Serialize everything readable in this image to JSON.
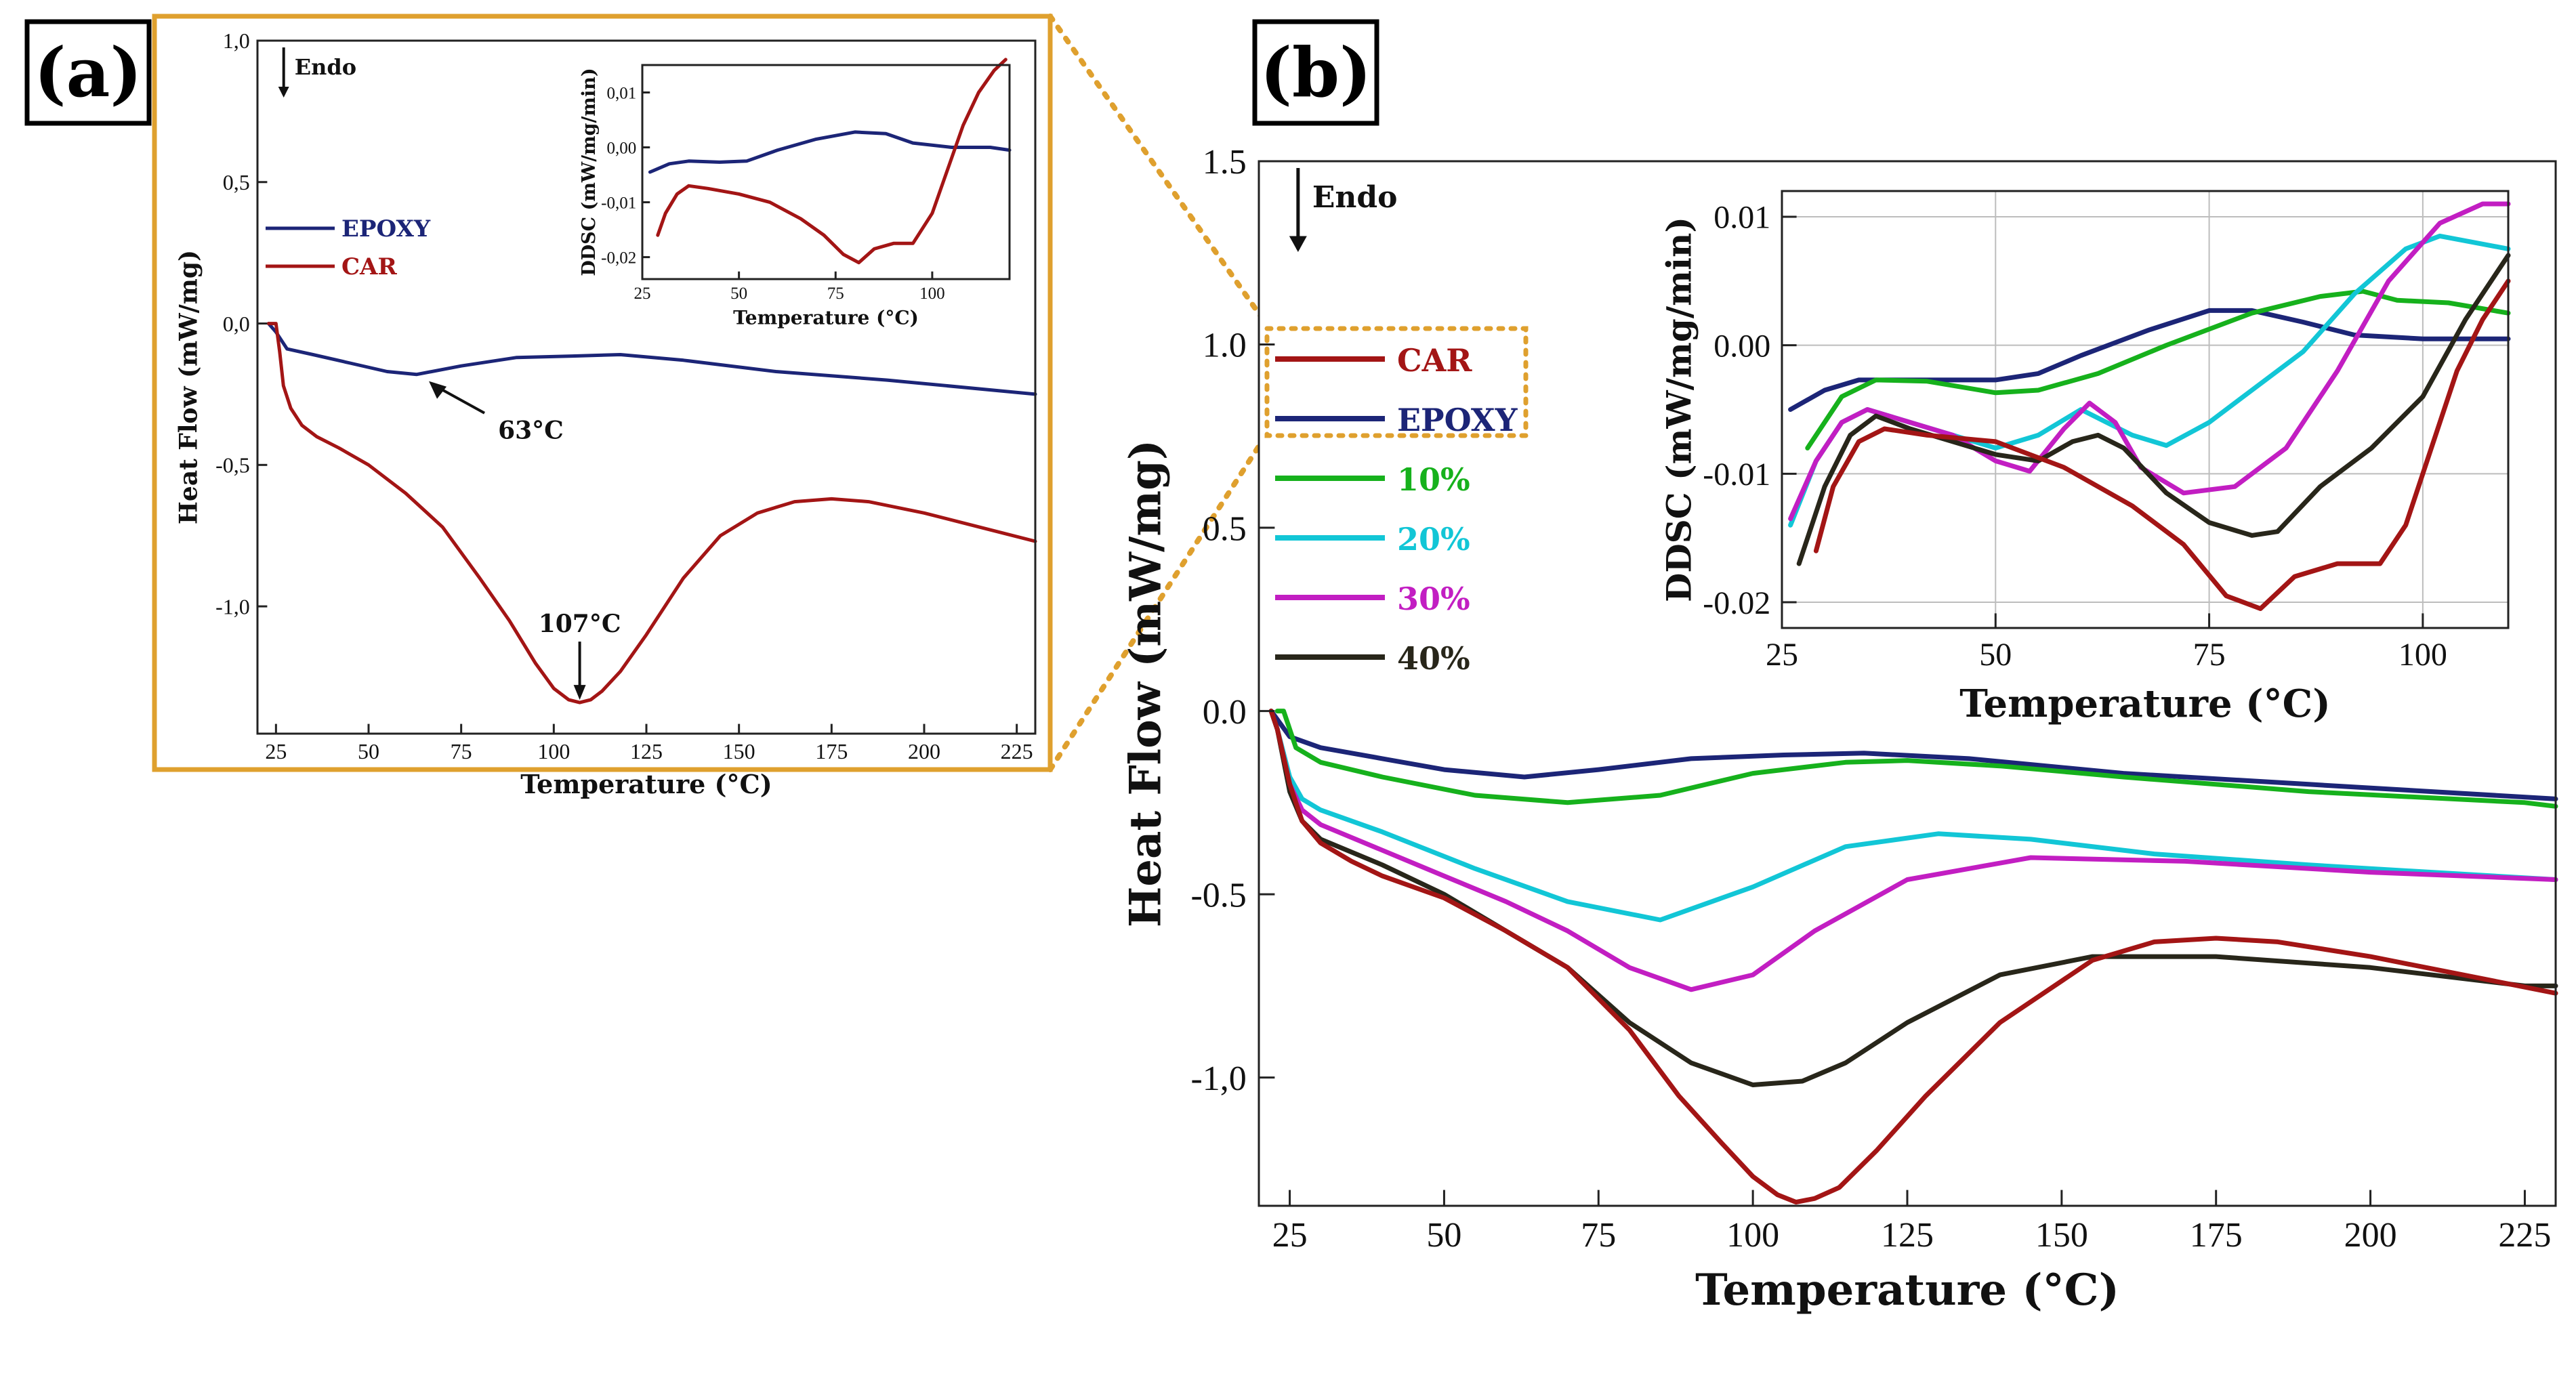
{
  "panel_a_label": "(a)",
  "panel_b_label": "(b)",
  "colors": {
    "CAR": "#a31515",
    "EPOXY": "#1c2577",
    "10%": "#16b11c",
    "20%": "#12c6d6",
    "30%": "#c21ec2",
    "40%": "#28261a",
    "frame": "#dfa02e"
  },
  "chart_data": [
    {
      "id": "a-main",
      "type": "line",
      "title": "",
      "xlabel": "Temperature (°C)",
      "ylabel": "Heat Flow (mW/mg)",
      "xlim": [
        20,
        230
      ],
      "ylim": [
        -1.45,
        1.0
      ],
      "xticks": [
        25,
        50,
        75,
        100,
        125,
        150,
        175,
        200,
        225
      ],
      "yticks": [
        -1.0,
        -0.5,
        0.0,
        0.5,
        1.0
      ],
      "ytick_labels": [
        "-1,0",
        "-0,5",
        "0,0",
        "0,5",
        "1,0"
      ],
      "endo_label": "Endo",
      "legend": [
        "EPOXY",
        "CAR"
      ],
      "annotations": [
        {
          "text": "63°C",
          "x": 63,
          "y": -0.18
        },
        {
          "text": "107°C",
          "x": 107,
          "y": -1.34
        }
      ],
      "series": [
        {
          "name": "EPOXY",
          "x": [
            23,
            25,
            28,
            35,
            45,
            55,
            63,
            75,
            90,
            105,
            118,
            135,
            160,
            190,
            230
          ],
          "y": [
            0.0,
            -0.03,
            -0.09,
            -0.11,
            -0.14,
            -0.17,
            -0.18,
            -0.15,
            -0.12,
            -0.115,
            -0.11,
            -0.13,
            -0.17,
            -0.2,
            -0.25
          ]
        },
        {
          "name": "CAR",
          "x": [
            23,
            25,
            26,
            27,
            29,
            32,
            36,
            42,
            50,
            60,
            70,
            80,
            88,
            95,
            100,
            104,
            107,
            110,
            113,
            118,
            125,
            135,
            145,
            155,
            165,
            175,
            185,
            200,
            215,
            230
          ],
          "y": [
            0.0,
            0.0,
            -0.1,
            -0.22,
            -0.3,
            -0.36,
            -0.4,
            -0.44,
            -0.5,
            -0.6,
            -0.72,
            -0.9,
            -1.05,
            -1.2,
            -1.29,
            -1.33,
            -1.34,
            -1.33,
            -1.3,
            -1.23,
            -1.1,
            -0.9,
            -0.75,
            -0.67,
            -0.63,
            -0.62,
            -0.63,
            -0.67,
            -0.72,
            -0.77
          ]
        }
      ]
    },
    {
      "id": "a-inset",
      "type": "line",
      "xlabel": "Temperature (°C)",
      "ylabel": "DDSC (mW/mg/min)",
      "xlim": [
        25,
        120
      ],
      "ylim": [
        -0.024,
        0.015
      ],
      "xticks": [
        25,
        50,
        75,
        100
      ],
      "yticks": [
        0.01,
        0.0,
        -0.01,
        -0.02
      ],
      "ytick_labels": [
        "0,01",
        "0,00",
        "-0,01",
        "-0,02"
      ],
      "series": [
        {
          "name": "EPOXY",
          "x": [
            27,
            32,
            37,
            45,
            52,
            60,
            70,
            80,
            88,
            95,
            105,
            115,
            120
          ],
          "y": [
            -0.0045,
            -0.003,
            -0.0025,
            -0.0027,
            -0.0025,
            -0.0005,
            0.0015,
            0.0028,
            0.0025,
            0.0008,
            0.0,
            0.0,
            -0.0005
          ]
        },
        {
          "name": "CAR",
          "x": [
            29,
            31,
            34,
            37,
            42,
            50,
            58,
            66,
            72,
            77,
            81,
            85,
            90,
            95,
            100,
            104,
            108,
            112,
            116,
            119
          ],
          "y": [
            -0.016,
            -0.012,
            -0.0085,
            -0.007,
            -0.0075,
            -0.0085,
            -0.01,
            -0.013,
            -0.016,
            -0.0195,
            -0.021,
            -0.0185,
            -0.0175,
            -0.0175,
            -0.012,
            -0.004,
            0.004,
            0.01,
            0.014,
            0.016
          ]
        }
      ]
    },
    {
      "id": "b-main",
      "type": "line",
      "xlabel": "Temperature (°C)",
      "ylabel": "Heat Flow (mW/mg)",
      "xlim": [
        20,
        230
      ],
      "ylim": [
        -1.35,
        1.5
      ],
      "xticks": [
        25,
        50,
        75,
        100,
        125,
        150,
        175,
        200,
        225
      ],
      "yticks": [
        -1.0,
        -0.5,
        0.0,
        0.5,
        1.0,
        1.5
      ],
      "ytick_labels": [
        "-1,0",
        "-0.5",
        "0.0",
        "0.5",
        "1.0",
        "1.5"
      ],
      "endo_label": "Endo",
      "legend": [
        "CAR",
        "EPOXY",
        "10%",
        "20%",
        "30%",
        "40%"
      ],
      "series": [
        {
          "name": "EPOXY",
          "x": [
            22,
            25,
            30,
            40,
            50,
            63,
            75,
            90,
            105,
            118,
            135,
            160,
            190,
            230
          ],
          "y": [
            0.0,
            -0.07,
            -0.1,
            -0.13,
            -0.16,
            -0.18,
            -0.16,
            -0.13,
            -0.12,
            -0.115,
            -0.13,
            -0.17,
            -0.2,
            -0.24
          ]
        },
        {
          "name": "10%",
          "x": [
            23,
            24,
            26,
            30,
            40,
            55,
            70,
            85,
            100,
            115,
            125,
            140,
            160,
            190,
            225,
            230
          ],
          "y": [
            0.0,
            0.0,
            -0.1,
            -0.14,
            -0.18,
            -0.23,
            -0.25,
            -0.23,
            -0.17,
            -0.14,
            -0.135,
            -0.15,
            -0.18,
            -0.22,
            -0.25,
            -0.26
          ]
        },
        {
          "name": "20%",
          "x": [
            22,
            23,
            25,
            27,
            30,
            40,
            55,
            70,
            85,
            100,
            115,
            130,
            145,
            165,
            190,
            230
          ],
          "y": [
            0.0,
            -0.05,
            -0.18,
            -0.24,
            -0.27,
            -0.33,
            -0.43,
            -0.52,
            -0.57,
            -0.48,
            -0.37,
            -0.335,
            -0.35,
            -0.39,
            -0.42,
            -0.46
          ]
        },
        {
          "name": "30%",
          "x": [
            22,
            23,
            25,
            27,
            30,
            40,
            50,
            60,
            70,
            80,
            90,
            100,
            110,
            125,
            145,
            170,
            200,
            230
          ],
          "y": [
            0.0,
            -0.05,
            -0.2,
            -0.27,
            -0.31,
            -0.38,
            -0.45,
            -0.52,
            -0.6,
            -0.7,
            -0.76,
            -0.72,
            -0.6,
            -0.46,
            -0.4,
            -0.41,
            -0.44,
            -0.46
          ]
        },
        {
          "name": "40%",
          "x": [
            22,
            23,
            25,
            27,
            30,
            40,
            50,
            60,
            70,
            80,
            90,
            100,
            108,
            115,
            125,
            140,
            155,
            175,
            200,
            225,
            230
          ],
          "y": [
            0.0,
            -0.05,
            -0.22,
            -0.3,
            -0.35,
            -0.42,
            -0.5,
            -0.6,
            -0.7,
            -0.85,
            -0.96,
            -1.02,
            -1.01,
            -0.96,
            -0.85,
            -0.72,
            -0.67,
            -0.67,
            -0.7,
            -0.75,
            -0.75
          ]
        },
        {
          "name": "CAR",
          "x": [
            22,
            23,
            25,
            27,
            30,
            35,
            40,
            50,
            60,
            70,
            80,
            88,
            95,
            100,
            104,
            107,
            110,
            114,
            120,
            128,
            140,
            155,
            165,
            175,
            185,
            200,
            215,
            230
          ],
          "y": [
            0.0,
            -0.05,
            -0.2,
            -0.3,
            -0.36,
            -0.41,
            -0.45,
            -0.51,
            -0.6,
            -0.7,
            -0.87,
            -1.05,
            -1.18,
            -1.27,
            -1.32,
            -1.34,
            -1.33,
            -1.3,
            -1.2,
            -1.05,
            -0.85,
            -0.68,
            -0.63,
            -0.62,
            -0.63,
            -0.67,
            -0.72,
            -0.77
          ]
        }
      ]
    },
    {
      "id": "b-inset",
      "type": "line",
      "xlabel": "Temperature (°C)",
      "ylabel": "DDSC (mW/mg/min)",
      "xlim": [
        25,
        110
      ],
      "ylim": [
        -0.022,
        0.012
      ],
      "xticks": [
        25,
        50,
        75,
        100
      ],
      "yticks": [
        0.01,
        0.0,
        -0.01,
        -0.02
      ],
      "ytick_labels": [
        "0.01",
        "0.00",
        "-0.01",
        "-0.02"
      ],
      "grid": true,
      "series": [
        {
          "name": "EPOXY",
          "x": [
            26,
            30,
            34,
            40,
            50,
            55,
            60,
            68,
            75,
            80,
            86,
            92,
            100,
            110
          ],
          "y": [
            -0.005,
            -0.0035,
            -0.0027,
            -0.0027,
            -0.0027,
            -0.0022,
            -0.0008,
            0.0012,
            0.0027,
            0.0027,
            0.0018,
            0.0008,
            0.0005,
            0.0005
          ]
        },
        {
          "name": "10%",
          "x": [
            28,
            32,
            36,
            42,
            50,
            55,
            62,
            70,
            80,
            88,
            93,
            97,
            103,
            110
          ],
          "y": [
            -0.008,
            -0.004,
            -0.0027,
            -0.0028,
            -0.0037,
            -0.0035,
            -0.0022,
            0.0,
            0.0025,
            0.0038,
            0.0042,
            0.0035,
            0.0033,
            0.0025
          ]
        },
        {
          "name": "20%",
          "x": [
            26,
            29,
            32,
            35,
            40,
            45,
            50,
            55,
            60,
            63,
            66,
            70,
            75,
            80,
            86,
            92,
            98,
            102,
            106,
            110
          ],
          "y": [
            -0.014,
            -0.009,
            -0.006,
            -0.005,
            -0.006,
            -0.007,
            -0.008,
            -0.007,
            -0.005,
            -0.006,
            -0.007,
            -0.0078,
            -0.006,
            -0.0035,
            -0.0005,
            0.004,
            0.0075,
            0.0085,
            0.008,
            0.0075
          ]
        },
        {
          "name": "30%",
          "x": [
            26,
            29,
            32,
            35,
            40,
            45,
            50,
            54,
            58,
            61,
            64,
            67,
            72,
            78,
            84,
            90,
            96,
            102,
            107,
            110
          ],
          "y": [
            -0.0135,
            -0.009,
            -0.006,
            -0.005,
            -0.006,
            -0.007,
            -0.009,
            -0.0098,
            -0.0065,
            -0.0045,
            -0.006,
            -0.0095,
            -0.0115,
            -0.011,
            -0.008,
            -0.002,
            0.005,
            0.0095,
            0.011,
            0.011
          ]
        },
        {
          "name": "40%",
          "x": [
            27,
            30,
            33,
            36,
            40,
            45,
            50,
            55,
            59,
            62,
            65,
            70,
            75,
            80,
            83,
            88,
            94,
            100,
            105,
            110
          ],
          "y": [
            -0.017,
            -0.011,
            -0.007,
            -0.0055,
            -0.0065,
            -0.0075,
            -0.0085,
            -0.009,
            -0.0075,
            -0.007,
            -0.008,
            -0.0115,
            -0.0138,
            -0.0148,
            -0.0145,
            -0.011,
            -0.008,
            -0.004,
            0.002,
            0.007
          ]
        },
        {
          "name": "CAR",
          "x": [
            29,
            31,
            34,
            37,
            42,
            50,
            58,
            66,
            72,
            77,
            81,
            85,
            90,
            95,
            98,
            101,
            104,
            107,
            110
          ],
          "y": [
            -0.016,
            -0.011,
            -0.0075,
            -0.0065,
            -0.007,
            -0.0075,
            -0.0095,
            -0.0125,
            -0.0155,
            -0.0195,
            -0.0205,
            -0.018,
            -0.017,
            -0.017,
            -0.014,
            -0.008,
            -0.002,
            0.002,
            0.005
          ]
        }
      ]
    }
  ]
}
